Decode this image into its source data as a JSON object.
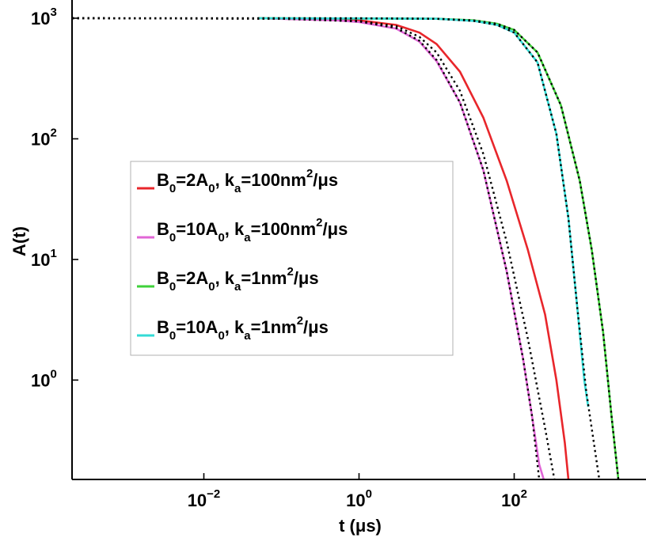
{
  "chart_data": {
    "type": "line",
    "xscale": "log",
    "yscale": "log",
    "xlabel": "t (μs)",
    "ylabel": "A(t)",
    "xlim": [
      0.0002,
      5000
    ],
    "ylim": [
      0.15,
      1000
    ],
    "x_ticks": [
      {
        "value": 0.01,
        "base": "10",
        "exp": "−2"
      },
      {
        "value": 1,
        "base": "10",
        "exp": "0"
      },
      {
        "value": 100,
        "base": "10",
        "exp": "2"
      }
    ],
    "y_ticks": [
      {
        "value": 1,
        "base": "10",
        "exp": "0"
      },
      {
        "value": 10,
        "base": "10",
        "exp": "1"
      },
      {
        "value": 100,
        "base": "10",
        "exp": "2"
      },
      {
        "value": 1000,
        "base": "10",
        "exp": "3"
      }
    ],
    "legend": {
      "placement": "center-left",
      "entries": [
        {
          "parts": [
            "B",
            "0",
            "=2A",
            "0",
            ", k",
            "a",
            "=100nm",
            "2",
            "/μs"
          ],
          "color": "#e8262b"
        },
        {
          "parts": [
            "B",
            "0",
            "=10A",
            "0",
            ", k",
            "a",
            "=100nm",
            "2",
            "/μs"
          ],
          "color": "#e066d6"
        },
        {
          "parts": [
            "B",
            "0",
            "=2A",
            "0",
            ", k",
            "a",
            "=1nm",
            "2",
            "/μs"
          ],
          "color": "#3fd13a"
        },
        {
          "parts": [
            "B",
            "0",
            "=10A",
            "0",
            ", k",
            "a",
            "=1nm",
            "2",
            "/μs"
          ],
          "color": "#33dbd6"
        }
      ]
    },
    "series": [
      {
        "color": "#e8262b",
        "style": "solid",
        "x": [
          0.0501,
          1,
          3,
          6,
          10,
          20,
          40,
          80,
          150,
          250,
          350,
          450,
          500
        ],
        "y": [
          1000,
          960,
          880,
          760,
          610,
          360,
          150,
          45,
          12,
          3.5,
          1.0,
          0.3,
          0.15
        ]
      },
      {
        "color": "#e066d6",
        "style": "solid",
        "x": [
          0.0501,
          0.5,
          1,
          3,
          6,
          10,
          20,
          40,
          80,
          130,
          170,
          210,
          240
        ],
        "y": [
          1000,
          960,
          930,
          820,
          640,
          440,
          200,
          55,
          8,
          1.5,
          0.5,
          0.2,
          0.15
        ]
      },
      {
        "color": "#3fd13a",
        "style": "solid",
        "x": [
          0.0501,
          10,
          30,
          60,
          100,
          200,
          400,
          700,
          1000,
          1400,
          1800,
          2200
        ],
        "y": [
          1000,
          990,
          960,
          900,
          800,
          520,
          190,
          45,
          12,
          2.5,
          0.5,
          0.15
        ]
      },
      {
        "color": "#33dbd6",
        "style": "solid",
        "x": [
          0.0501,
          10,
          30,
          60,
          100,
          200,
          350,
          500,
          650,
          800,
          900
        ],
        "y": [
          1000,
          990,
          950,
          880,
          760,
          430,
          110,
          22,
          4,
          1.0,
          0.6
        ]
      },
      {
        "color": "#000000",
        "style": "dotted",
        "x": [
          0.0002,
          0.1,
          1,
          3,
          6,
          10,
          20,
          40,
          80,
          130,
          170,
          210
        ],
        "y": [
          1000,
          990,
          940,
          830,
          650,
          450,
          200,
          55,
          8,
          1.5,
          0.5,
          0.15
        ]
      },
      {
        "color": "#000000",
        "style": "dotted",
        "x": [
          0.0002,
          0.1,
          1,
          3,
          6,
          10,
          20,
          40,
          80,
          150,
          250,
          330
        ],
        "y": [
          1000,
          990,
          950,
          860,
          700,
          520,
          250,
          75,
          14,
          2.2,
          0.4,
          0.15
        ]
      },
      {
        "color": "#000000",
        "style": "dotted",
        "x": [
          0.0002,
          1,
          10,
          30,
          60,
          100,
          200,
          350,
          500,
          650,
          850,
          1250
        ],
        "y": [
          1000,
          998,
          990,
          950,
          880,
          760,
          430,
          110,
          22,
          4,
          0.8,
          0.15
        ]
      },
      {
        "color": "#000000",
        "style": "dotted",
        "x": [
          0.0002,
          1,
          10,
          30,
          60,
          100,
          200,
          400,
          700,
          1000,
          1400,
          1800,
          2200
        ],
        "y": [
          1000,
          998,
          990,
          960,
          900,
          800,
          520,
          190,
          45,
          12,
          2.5,
          0.5,
          0.15
        ]
      }
    ]
  }
}
